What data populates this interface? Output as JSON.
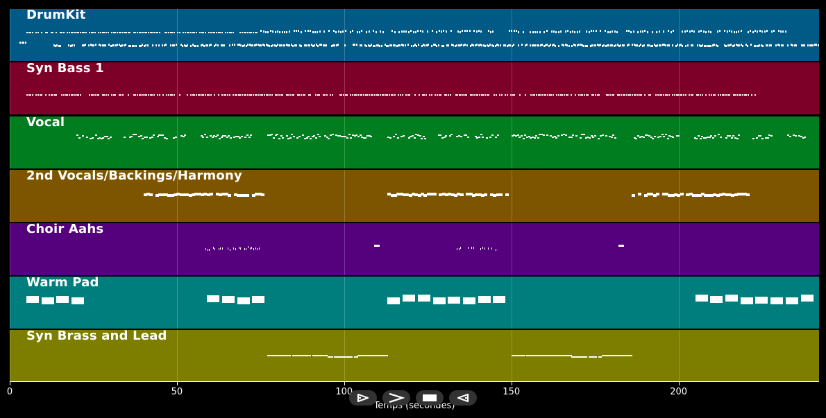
{
  "tracks": [
    {
      "name": "DrumKit",
      "color": "#005a85"
    },
    {
      "name": "Syn Bass 1",
      "color": "#7d0028"
    },
    {
      "name": "Vocal",
      "color": "#007d1e"
    },
    {
      "name": "2nd Vocals/Backings/Harmony",
      "color": "#7d5500"
    },
    {
      "name": "Choir Aahs",
      "color": "#55007d"
    },
    {
      "name": "Warm Pad",
      "color": "#007d7d"
    },
    {
      "name": "Syn Brass and Lead",
      "color": "#7d7d00"
    }
  ],
  "axis": {
    "label": "Temps (secondes)",
    "range_seconds": [
      0,
      242
    ],
    "ticks": [
      {
        "value": 0,
        "label": "0"
      },
      {
        "value": 50,
        "label": "50"
      },
      {
        "value": 100,
        "label": "100"
      },
      {
        "value": 150,
        "label": "150"
      },
      {
        "value": 200,
        "label": "200"
      }
    ]
  },
  "controls": [
    {
      "id": "play",
      "icon": "play-outline-icon"
    },
    {
      "id": "forward",
      "icon": "chevron-right-icon"
    },
    {
      "id": "stop",
      "icon": "stop-icon"
    },
    {
      "id": "back",
      "icon": "play-back-outline-icon"
    }
  ],
  "note_color": "#ffffff"
}
